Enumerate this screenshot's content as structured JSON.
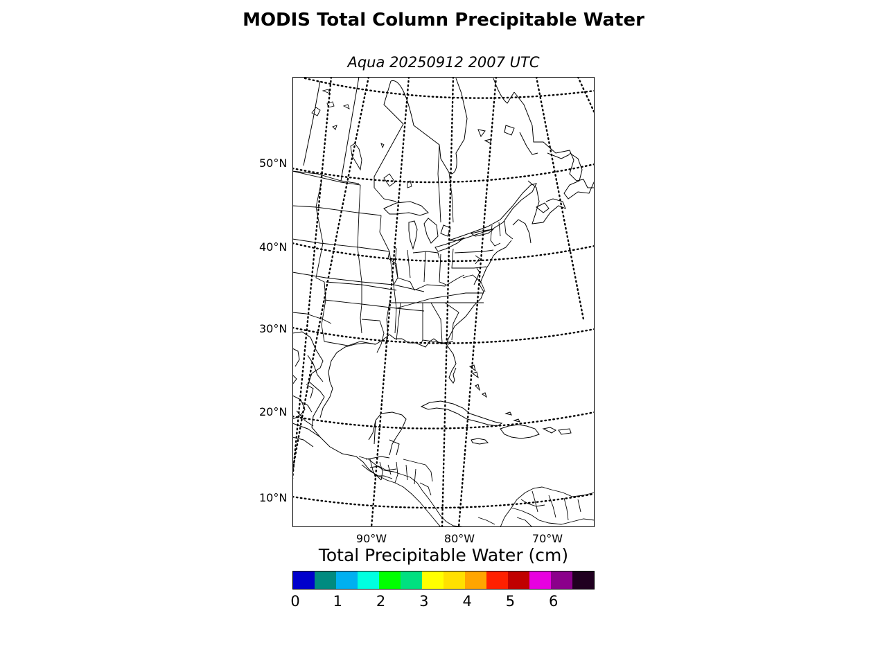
{
  "title": "MODIS Total Column Precipitable Water",
  "subtitle": "Aqua 20250912 2007 UTC",
  "map": {
    "latitude_labels": [
      "50°N",
      "40°N",
      "30°N",
      "20°N",
      "10°N"
    ],
    "longitude_labels": [
      "90°W",
      "80°W",
      "70°W"
    ],
    "graticule_style": "dotted",
    "background": "#ffffff",
    "coastline_color": "#000000"
  },
  "colorbar": {
    "title": "Total Precipitable Water (cm)",
    "tick_labels": [
      "0",
      "1",
      "2",
      "3",
      "4",
      "5",
      "6"
    ],
    "range": [
      0,
      7
    ],
    "colors": [
      "#0000cc",
      "#008b80",
      "#00b0f0",
      "#00ffe0",
      "#00ff00",
      "#00e080",
      "#ffff00",
      "#ffe000",
      "#ffa500",
      "#ff2000",
      "#c00000",
      "#e800e0",
      "#8b008b",
      "#200020"
    ]
  }
}
